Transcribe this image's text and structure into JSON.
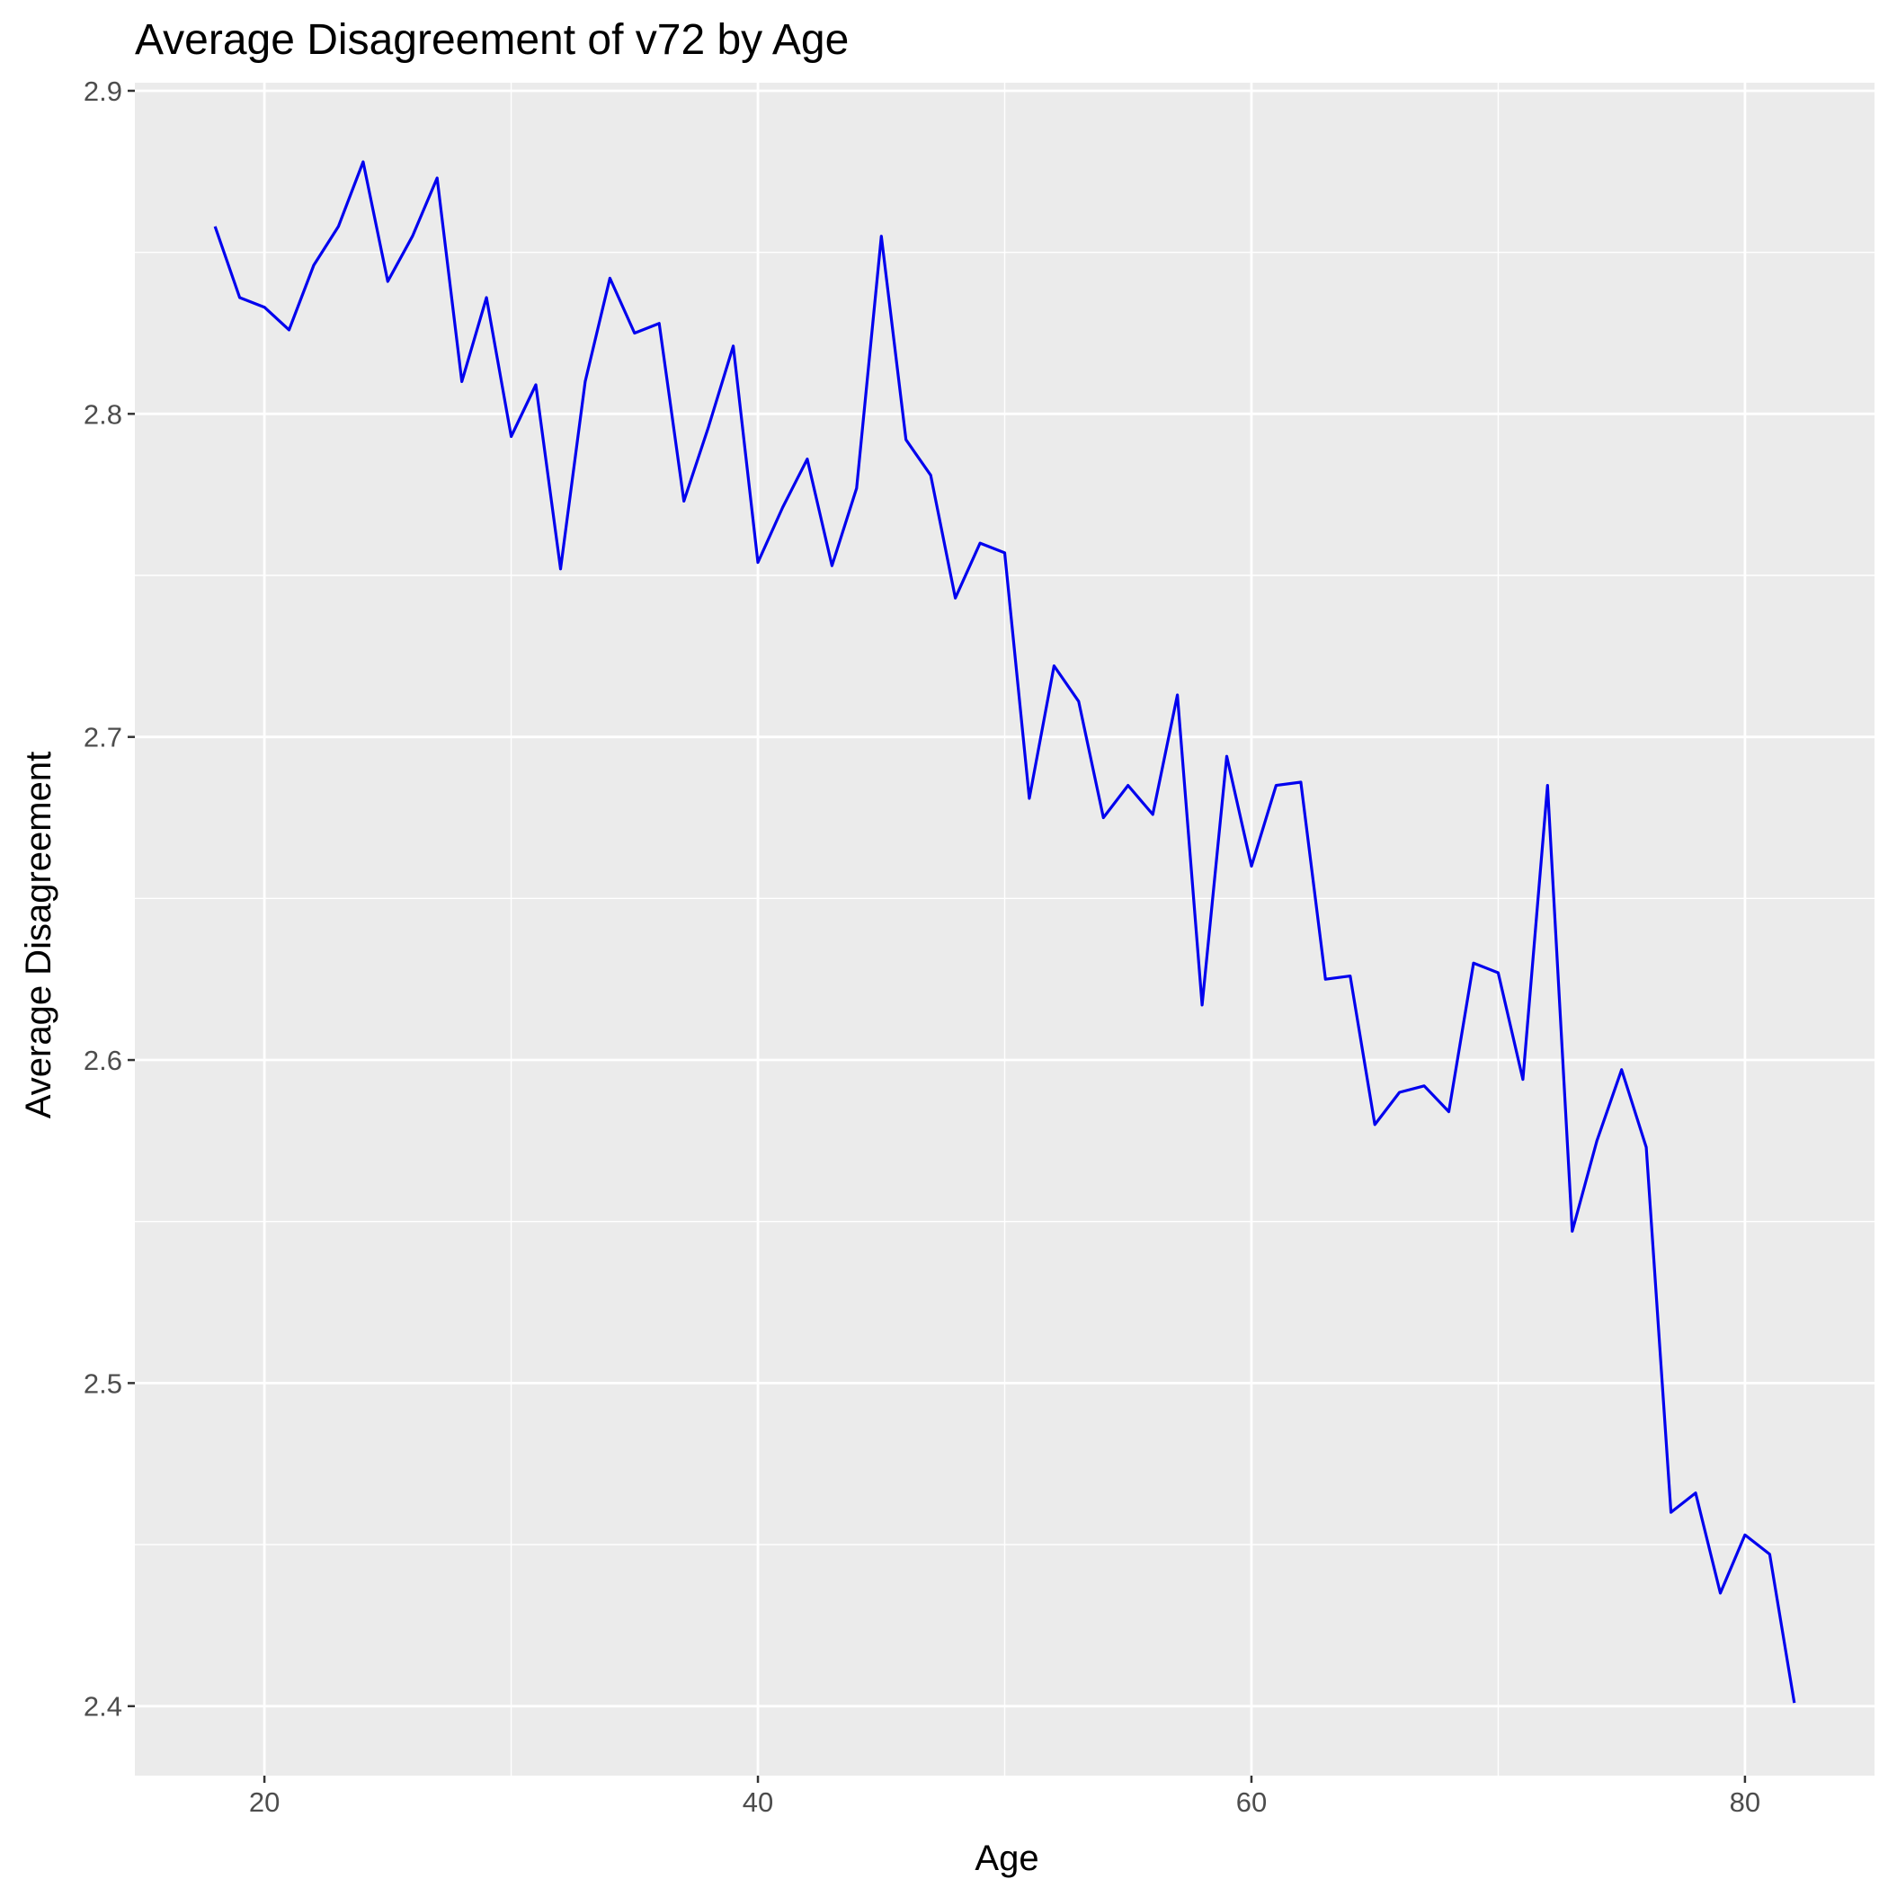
{
  "chart_data": {
    "type": "line",
    "title": "Average Disagreement of v72 by Age",
    "xlabel": "Age",
    "ylabel": "Average Disagreement",
    "xlim": [
      14.75,
      85.25
    ],
    "ylim": [
      2.3785,
      2.9025
    ],
    "x_ticks": [
      20,
      40,
      60,
      80
    ],
    "x_tick_labels": [
      "20",
      "40",
      "60",
      "80"
    ],
    "x_minor_ticks": [
      30,
      50,
      70
    ],
    "y_ticks": [
      2.4,
      2.5,
      2.6,
      2.7,
      2.8,
      2.9
    ],
    "y_tick_labels": [
      "2.4",
      "2.5",
      "2.6",
      "2.7",
      "2.8",
      "2.9"
    ],
    "y_minor_ticks": [
      2.45,
      2.55,
      2.65,
      2.75,
      2.85
    ],
    "grid": true,
    "colors": {
      "line": "#0000ee",
      "panel": "#ebebeb",
      "grid": "#ffffff"
    },
    "series": [
      {
        "x": [
          18,
          19,
          20,
          21,
          22,
          23,
          24,
          25,
          26,
          27,
          28,
          29,
          30,
          31,
          32,
          33,
          34,
          35,
          36,
          37,
          38,
          39,
          40,
          41,
          42,
          43,
          44,
          45,
          46,
          47,
          48,
          49,
          50,
          51,
          52,
          53,
          54,
          55,
          56,
          57,
          58,
          59,
          60,
          61,
          62,
          63,
          64,
          65,
          66,
          67,
          68,
          69,
          70,
          71,
          72,
          73,
          74,
          75,
          76,
          77,
          78,
          79,
          80,
          81,
          82
        ],
        "y": [
          2.858,
          2.836,
          2.833,
          2.826,
          2.846,
          2.858,
          2.878,
          2.841,
          2.855,
          2.873,
          2.81,
          2.836,
          2.793,
          2.809,
          2.752,
          2.81,
          2.842,
          2.825,
          2.828,
          2.773,
          2.796,
          2.821,
          2.754,
          2.771,
          2.786,
          2.753,
          2.777,
          2.855,
          2.792,
          2.781,
          2.743,
          2.76,
          2.757,
          2.681,
          2.722,
          2.711,
          2.675,
          2.685,
          2.676,
          2.713,
          2.617,
          2.694,
          2.66,
          2.685,
          2.686,
          2.625,
          2.626,
          2.58,
          2.59,
          2.592,
          2.584,
          2.63,
          2.627,
          2.594,
          2.685,
          2.547,
          2.575,
          2.597,
          2.573,
          2.46,
          2.466,
          2.435,
          2.453,
          2.447,
          2.401
        ]
      }
    ]
  }
}
